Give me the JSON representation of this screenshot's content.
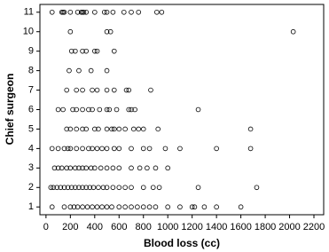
{
  "chart_data": {
    "type": "scatter",
    "x_label": "Blood loss (cc)",
    "y_label": "Chief surgeon",
    "color": "#000000",
    "grid": false,
    "xlim": [
      -50,
      2280
    ],
    "ylim": [
      0.6,
      11.4
    ],
    "xticks": [
      0,
      200,
      400,
      600,
      800,
      1000,
      1200,
      1400,
      1600,
      1800,
      2000,
      2200
    ],
    "yticks": [
      1,
      2,
      3,
      4,
      5,
      6,
      7,
      8,
      9,
      10,
      11
    ],
    "x": [
      50,
      130,
      140,
      150,
      200,
      260,
      290,
      300,
      310,
      330,
      400,
      480,
      500,
      550,
      640,
      700,
      760,
      910,
      950,
      200,
      500,
      530,
      2030,
      210,
      240,
      300,
      330,
      400,
      420,
      560,
      190,
      270,
      370,
      500,
      170,
      250,
      300,
      380,
      420,
      500,
      560,
      660,
      680,
      860,
      100,
      140,
      220,
      250,
      300,
      350,
      380,
      440,
      500,
      520,
      580,
      680,
      700,
      730,
      1250,
      170,
      200,
      250,
      300,
      330,
      400,
      430,
      500,
      540,
      560,
      600,
      650,
      720,
      760,
      800,
      920,
      1680,
      50,
      100,
      150,
      180,
      200,
      250,
      300,
      350,
      380,
      420,
      460,
      500,
      560,
      600,
      700,
      800,
      850,
      980,
      1100,
      1400,
      1680,
      70,
      100,
      130,
      170,
      200,
      240,
      270,
      300,
      330,
      370,
      400,
      450,
      500,
      550,
      600,
      700,
      770,
      830,
      900,
      1000,
      40,
      60,
      90,
      120,
      150,
      180,
      210,
      240,
      270,
      300,
      330,
      360,
      390,
      430,
      470,
      500,
      550,
      600,
      650,
      700,
      800,
      880,
      930,
      1250,
      1730,
      50,
      150,
      200,
      230,
      260,
      300,
      340,
      380,
      420,
      460,
      500,
      540,
      600,
      650,
      700,
      750,
      800,
      850,
      900,
      1000,
      1100,
      1200,
      1220,
      1300,
      1400,
      1600
    ],
    "values": [
      11,
      11,
      11,
      11,
      11,
      11,
      11,
      11,
      11,
      11,
      11,
      11,
      11,
      11,
      11,
      11,
      11,
      11,
      11,
      10,
      10,
      10,
      10,
      9,
      9,
      9,
      9,
      9,
      9,
      9,
      8,
      8,
      8,
      8,
      7,
      7,
      7,
      7,
      7,
      7,
      7,
      7,
      7,
      7,
      6,
      6,
      6,
      6,
      6,
      6,
      6,
      6,
      6,
      6,
      6,
      6,
      6,
      6,
      6,
      5,
      5,
      5,
      5,
      5,
      5,
      5,
      5,
      5,
      5,
      5,
      5,
      5,
      5,
      5,
      5,
      5,
      4,
      4,
      4,
      4,
      4,
      4,
      4,
      4,
      4,
      4,
      4,
      4,
      4,
      4,
      4,
      4,
      4,
      4,
      4,
      4,
      4,
      3,
      3,
      3,
      3,
      3,
      3,
      3,
      3,
      3,
      3,
      3,
      3,
      3,
      3,
      3,
      3,
      3,
      3,
      3,
      3,
      2,
      2,
      2,
      2,
      2,
      2,
      2,
      2,
      2,
      2,
      2,
      2,
      2,
      2,
      2,
      2,
      2,
      2,
      2,
      2,
      2,
      2,
      2,
      2,
      2,
      1,
      1,
      1,
      1,
      1,
      1,
      1,
      1,
      1,
      1,
      1,
      1,
      1,
      1,
      1,
      1,
      1,
      1,
      1,
      1,
      1,
      1,
      1,
      1,
      1,
      1
    ]
  }
}
